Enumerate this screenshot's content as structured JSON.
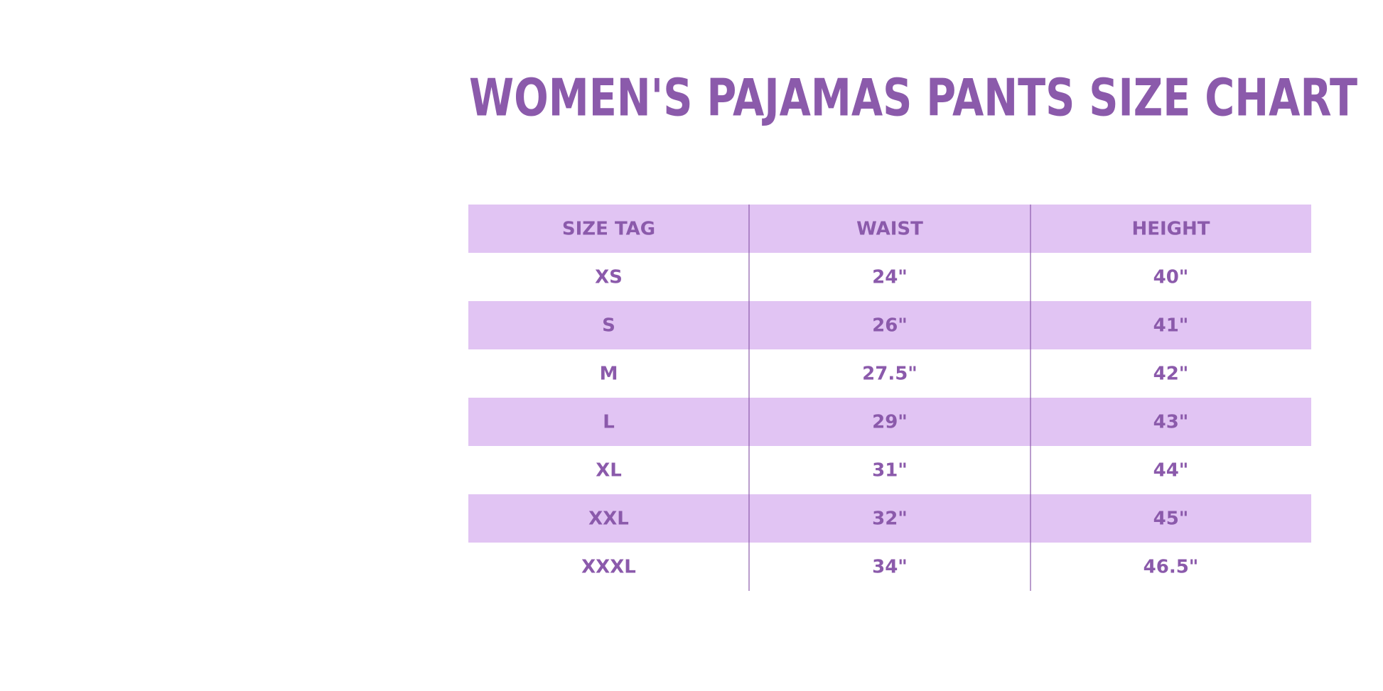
{
  "title": "WOMEN'S PAJAMAS PANTS SIZE CHART",
  "table": {
    "header": [
      "SIZE TAG",
      "WAIST",
      "HEIGHT"
    ],
    "rows": [
      [
        "XS",
        "24\"",
        "40\""
      ],
      [
        "S",
        "26\"",
        "41\""
      ],
      [
        "M",
        "27.5\"",
        "42\""
      ],
      [
        "L",
        "29\"",
        "43\""
      ],
      [
        "XL",
        "31\"",
        "44\""
      ],
      [
        "XXL",
        "32\"",
        "45\""
      ],
      [
        "XXXL",
        "34\"",
        "46.5\""
      ]
    ]
  }
}
